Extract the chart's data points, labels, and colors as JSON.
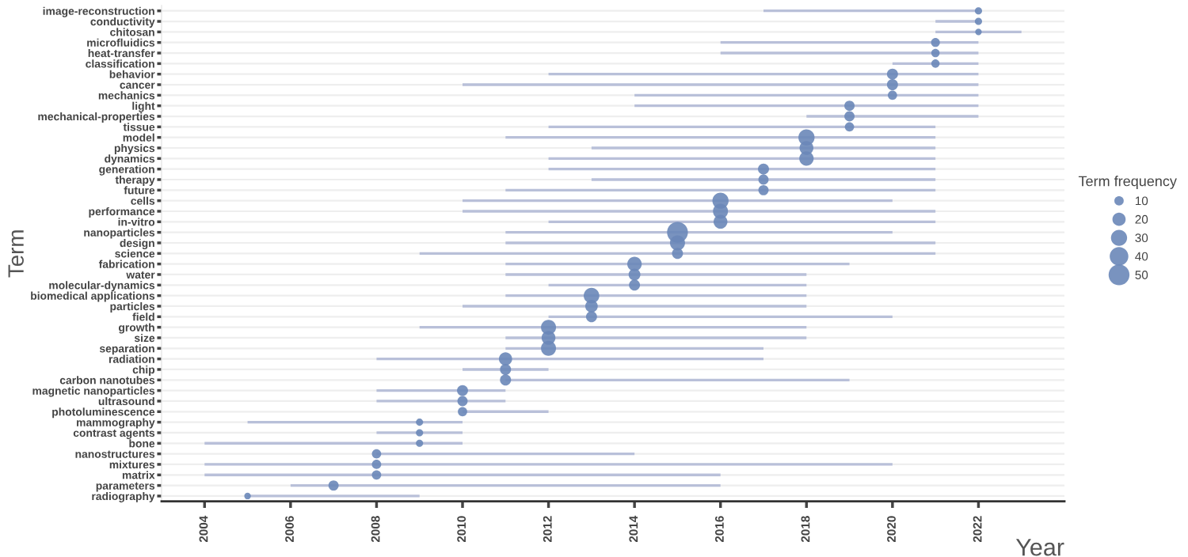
{
  "chart_data": {
    "type": "bubble",
    "orientation": "horizontal",
    "xlabel": "Year",
    "ylabel": "Term",
    "legend_title": "Term frequency",
    "grid": "y",
    "color": "#6a87b8",
    "categories": [
      "image-reconstruction",
      "conductivity",
      "chitosan",
      "microfluidics",
      "heat-transfer",
      "classification",
      "behavior",
      "cancer",
      "mechanics",
      "light",
      "mechanical-properties",
      "tissue",
      "model",
      "physics",
      "dynamics",
      "generation",
      "therapy",
      "future",
      "cells",
      "performance",
      "in-vitro",
      "nanoparticles",
      "design",
      "science",
      "fabrication",
      "water",
      "molecular-dynamics",
      "biomedical applications",
      "particles",
      "field",
      "growth",
      "size",
      "separation",
      "radiation",
      "chip",
      "carbon nanotubes",
      "magnetic nanoparticles",
      "ultrasound",
      "photoluminescence",
      "mammography",
      "contrast agents",
      "bone",
      "nanostructures",
      "mixtures",
      "matrix",
      "parameters",
      "radiography"
    ],
    "values": [
      2022,
      2022,
      2022,
      2021,
      2021,
      2021,
      2020,
      2020,
      2020,
      2019,
      2019,
      2019,
      2018,
      2018,
      2018,
      2017,
      2017,
      2017,
      2016,
      2016,
      2016,
      2015,
      2015,
      2015,
      2014,
      2014,
      2014,
      2013,
      2013,
      2013,
      2012,
      2012,
      2012,
      2011,
      2011,
      2011,
      2010,
      2010,
      2010,
      2009,
      2009,
      2009,
      2008,
      2008,
      2008,
      2007,
      2005
    ],
    "errors": [
      [
        2017,
        2022
      ],
      [
        2021,
        2022
      ],
      [
        2021,
        2023
      ],
      [
        2016,
        2022
      ],
      [
        2016,
        2022
      ],
      [
        2020,
        2022
      ],
      [
        2012,
        2022
      ],
      [
        2010,
        2022
      ],
      [
        2014,
        2022
      ],
      [
        2014,
        2022
      ],
      [
        2018,
        2022
      ],
      [
        2012,
        2021
      ],
      [
        2011,
        2021
      ],
      [
        2013,
        2021
      ],
      [
        2012,
        2021
      ],
      [
        2012,
        2021
      ],
      [
        2013,
        2021
      ],
      [
        2011,
        2021
      ],
      [
        2010,
        2020
      ],
      [
        2010,
        2021
      ],
      [
        2012,
        2021
      ],
      [
        2011,
        2020
      ],
      [
        2011,
        2021
      ],
      [
        2009,
        2021
      ],
      [
        2011,
        2019
      ],
      [
        2011,
        2018
      ],
      [
        2012,
        2018
      ],
      [
        2011,
        2018
      ],
      [
        2010,
        2018
      ],
      [
        2012,
        2020
      ],
      [
        2009,
        2018
      ],
      [
        2011,
        2018
      ],
      [
        2011,
        2017
      ],
      [
        2008,
        2017
      ],
      [
        2010,
        2012
      ],
      [
        2011,
        2019
      ],
      [
        2008,
        2011
      ],
      [
        2008,
        2011
      ],
      [
        2010,
        2012
      ],
      [
        2005,
        2010
      ],
      [
        2008,
        2010
      ],
      [
        2004,
        2010
      ],
      [
        2008,
        2014
      ],
      [
        2004,
        2020
      ],
      [
        2004,
        2016
      ],
      [
        2006,
        2016
      ],
      [
        2005,
        2009
      ]
    ],
    "sizes": [
      6,
      6,
      5,
      9,
      8,
      8,
      14,
      14,
      10,
      12,
      12,
      10,
      30,
      22,
      24,
      14,
      12,
      12,
      30,
      26,
      22,
      50,
      26,
      14,
      24,
      16,
      14,
      28,
      18,
      14,
      26,
      22,
      26,
      20,
      14,
      14,
      14,
      12,
      10,
      6,
      6,
      6,
      10,
      10,
      10,
      12,
      5
    ],
    "size_legend": [
      10,
      20,
      30,
      40,
      50
    ],
    "xlim": [
      2003,
      2024
    ],
    "xticks": [
      2004,
      2006,
      2008,
      2010,
      2012,
      2014,
      2016,
      2018,
      2020,
      2022
    ]
  }
}
